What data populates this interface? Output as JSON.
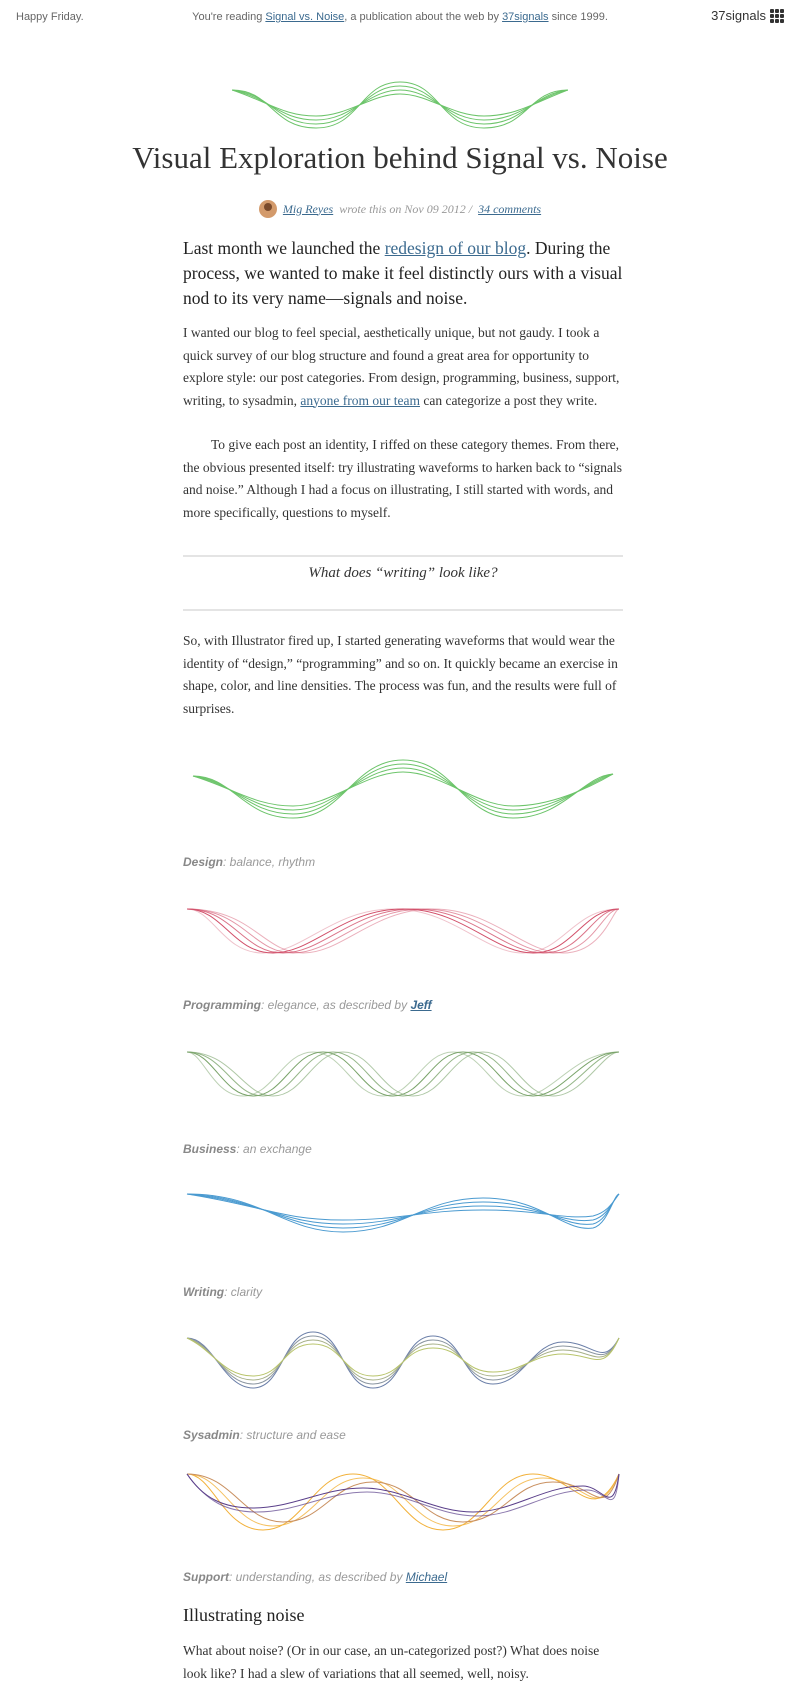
{
  "topbar": {
    "greeting": "Happy Friday.",
    "reading_prefix": "You're reading",
    "publication_link": "Signal vs. Noise",
    "reading_middle": ", a publication about the web by",
    "company_link": "37signals",
    "reading_suffix": "since 1999.",
    "brand": "37signals",
    "brand_icon": "37signals-dots-icon"
  },
  "article": {
    "title": "Visual Exploration behind Signal vs. Noise",
    "byline": {
      "author": "Mig Reyes",
      "middle": "wrote this on Nov 09 2012 /",
      "comments": "34 comments"
    },
    "lede": {
      "before": "Last month we launched the",
      "link": "redesign of our blog",
      "after": ". During the process, we wanted to make it feel distinctly ours with a visual nod to its very name—signals and noise."
    },
    "p1": {
      "before": "I wanted our blog to feel special, aesthetically unique, but not gaudy. I took a quick survey of our blog structure and found a great area for opportunity to explore style: our post categories. From design, programming, business, support, writing, to sysadmin,",
      "link": "anyone from our team",
      "after": "can categorize a post they write."
    },
    "p2": "To give each post an identity, I riffed on these category themes. From there, the obvious presented itself: try illustrating waveforms to harken back to “signals and noise.” Although I had a focus on illustrating, I still started with words, and more specifically, questions to myself.",
    "pullquote": "What does “writing” look like?",
    "p3": "So, with Illustrator fired up, I started generating waveforms that would wear the identity of “design,” “programming” and so on. It quickly became an exercise in shape, color, and line densities. The process was fun, and the results were full of surprises.",
    "captions": {
      "design": {
        "label": "Design",
        "text": ": balance, rhythm"
      },
      "programming": {
        "label": "Programming",
        "text": ": elegance, as described by",
        "link": "Jeff"
      },
      "business": {
        "label": "Business",
        "text": ": an exchange"
      },
      "writing": {
        "label": "Writing",
        "text": ": clarity"
      },
      "sysadmin": {
        "label": "Sysadmin",
        "text": ": structure and ease"
      },
      "support": {
        "label": "Support",
        "text": ": understanding, as described by",
        "link": "Michael"
      }
    },
    "subhead": "Illustrating noise",
    "p4": "What about noise? (Or in our case, an un-categorized post?) What does noise look like? I had a slew of variations that all seemed, well, noisy."
  },
  "colors": {
    "link": "#3b6a8f",
    "design": "#6cc46a",
    "programming": "#d2506a",
    "business": "#7aa46a",
    "writing": "#4a9ad0",
    "sysadmin_a": "#6b7fa8",
    "sysadmin_b": "#b8c46a",
    "support_a": "#f2b13a",
    "support_b": "#5a3f8a"
  }
}
